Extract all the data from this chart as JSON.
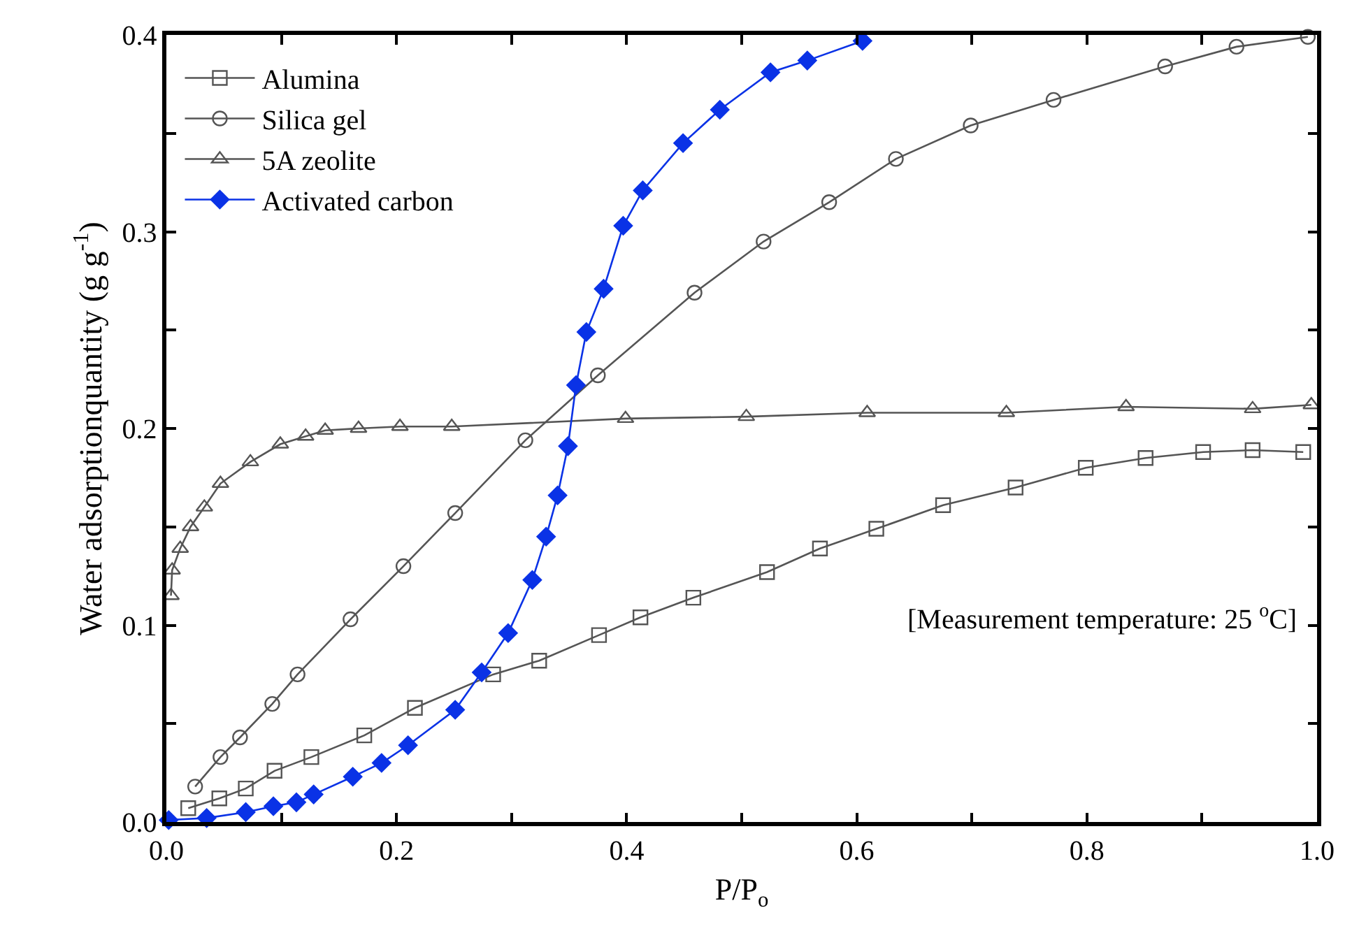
{
  "chart_data": {
    "type": "line",
    "xlabel": "P/P$_{o}$",
    "ylabel": "Water adsorptionquantity (g g$^{-1}$)",
    "xlim": [
      0,
      1
    ],
    "ylim": [
      0,
      0.4
    ],
    "xticks": [
      {
        "value": 0,
        "label": "0.0"
      },
      {
        "value": 0.1,
        "label": null
      },
      {
        "value": 0.2,
        "label": "0.2"
      },
      {
        "value": 0.3,
        "label": null
      },
      {
        "value": 0.4,
        "label": "0.4"
      },
      {
        "value": 0.5,
        "label": null
      },
      {
        "value": 0.6,
        "label": "0.6"
      },
      {
        "value": 0.7,
        "label": null
      },
      {
        "value": 0.8,
        "label": "0.8"
      },
      {
        "value": 0.9,
        "label": null
      },
      {
        "value": 1,
        "label": "1.0"
      }
    ],
    "yticks": [
      {
        "value": 0,
        "label": "0.0"
      },
      {
        "value": 0.05,
        "label": null
      },
      0.1,
      {
        "value": 0.15,
        "label": null
      },
      0.2,
      {
        "value": 0.25,
        "label": null
      },
      0.3,
      {
        "value": 0.35,
        "label": null
      },
      0.4
    ],
    "legend": "top left",
    "annotations": [
      "[Measurement temperature: 25 $^{o}$C]"
    ],
    "series": [
      {
        "name": "Alumina",
        "color": "#555555",
        "marker": "square",
        "x": [
          0.019,
          0.046,
          0.069,
          0.094,
          0.126,
          0.172,
          0.216,
          0.284,
          0.324,
          0.376,
          0.412,
          0.458,
          0.522,
          0.568,
          0.617,
          0.675,
          0.738,
          0.799,
          0.851,
          0.901,
          0.944,
          0.988
        ],
        "values": [
          0.007,
          0.012,
          0.017,
          0.026,
          0.033,
          0.044,
          0.058,
          0.075,
          0.082,
          0.095,
          0.104,
          0.114,
          0.127,
          0.139,
          0.149,
          0.161,
          0.17,
          0.18,
          0.185,
          0.188,
          0.189,
          0.188
        ]
      },
      {
        "name": "Silica gel",
        "color": "#555555",
        "marker": "circle",
        "x": [
          0.025,
          0.047,
          0.064,
          0.092,
          0.114,
          0.16,
          0.206,
          0.251,
          0.312,
          0.375,
          0.459,
          0.519,
          0.576,
          0.634,
          0.699,
          0.771,
          0.868,
          0.93,
          0.992
        ],
        "values": [
          0.018,
          0.033,
          0.043,
          0.06,
          0.075,
          0.103,
          0.13,
          0.157,
          0.194,
          0.227,
          0.269,
          0.295,
          0.315,
          0.337,
          0.354,
          0.367,
          0.384,
          0.394,
          0.399
        ]
      },
      {
        "name": "5A zeolite",
        "color": "#555555",
        "marker": "triangle",
        "x": [
          0.004,
          0.005,
          0.012,
          0.021,
          0.033,
          0.047,
          0.073,
          0.099,
          0.121,
          0.138,
          0.167,
          0.203,
          0.248,
          0.399,
          0.504,
          0.609,
          0.73,
          0.834,
          0.944,
          0.995
        ],
        "values": [
          0.115,
          0.128,
          0.139,
          0.15,
          0.16,
          0.172,
          0.183,
          0.192,
          0.196,
          0.199,
          0.2,
          0.201,
          0.201,
          0.205,
          0.206,
          0.208,
          0.208,
          0.211,
          0.21,
          0.212
        ]
      },
      {
        "name": "Activated carbon",
        "color": "#0a32e6",
        "marker": "diamond",
        "x": [
          0.002,
          0.035,
          0.069,
          0.093,
          0.113,
          0.128,
          0.162,
          0.187,
          0.21,
          0.251,
          0.274,
          0.297,
          0.318,
          0.33,
          0.34,
          0.349,
          0.356,
          0.365,
          0.38,
          0.397,
          0.414,
          0.449,
          0.481,
          0.525,
          0.557,
          0.605
        ],
        "values": [
          0.001,
          0.002,
          0.005,
          0.008,
          0.01,
          0.014,
          0.023,
          0.03,
          0.039,
          0.057,
          0.076,
          0.096,
          0.123,
          0.145,
          0.166,
          0.191,
          0.222,
          0.249,
          0.271,
          0.303,
          0.321,
          0.345,
          0.362,
          0.381,
          0.387,
          0.397
        ]
      }
    ]
  }
}
